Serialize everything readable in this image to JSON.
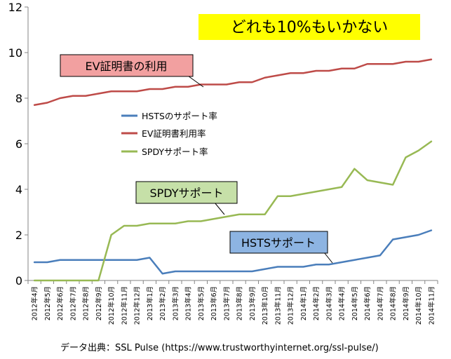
{
  "chart_data": {
    "type": "line",
    "title": "",
    "xlabel": "",
    "ylabel": "",
    "ylim": [
      0,
      12
    ],
    "yticks": [
      0,
      2,
      4,
      6,
      8,
      10,
      12
    ],
    "grid": false,
    "legend_position": "center-left",
    "categories": [
      "2012年4月",
      "2012年5月",
      "2012年6月",
      "2012年7月",
      "2012年8月",
      "2012年9月",
      "2012年10月",
      "2012年11月",
      "2012年12月",
      "2013年1月",
      "2013年2月",
      "2013年3月",
      "2013年4月",
      "2013年5月",
      "2013年6月",
      "2013年7月",
      "2013年8月",
      "2013年9月",
      "2013年10月",
      "2013年11月",
      "2013年12月",
      "2014年1月",
      "2014年2月",
      "2014年3月",
      "2014年4月",
      "2014年5月",
      "2014年6月",
      "2014年7月",
      "2014年8月",
      "2014年9月",
      "2014年10月",
      "2014年11月"
    ],
    "series": [
      {
        "name": "HSTSのサポート率",
        "color": "#4a7ebb",
        "values": [
          0.8,
          0.8,
          0.9,
          0.9,
          0.9,
          0.9,
          0.9,
          0.9,
          0.9,
          1.0,
          0.3,
          0.4,
          0.4,
          0.4,
          0.4,
          0.4,
          0.4,
          0.4,
          0.5,
          0.6,
          0.6,
          0.6,
          0.7,
          0.7,
          0.8,
          0.9,
          1.0,
          1.1,
          1.8,
          1.9,
          2.0,
          2.2
        ]
      },
      {
        "name": "EV証明書利用率",
        "color": "#be4b48",
        "values": [
          7.7,
          7.8,
          8.0,
          8.1,
          8.1,
          8.2,
          8.3,
          8.3,
          8.3,
          8.4,
          8.4,
          8.5,
          8.5,
          8.6,
          8.6,
          8.6,
          8.7,
          8.7,
          8.9,
          9.0,
          9.1,
          9.1,
          9.2,
          9.2,
          9.3,
          9.3,
          9.5,
          9.5,
          9.5,
          9.6,
          9.6,
          9.7
        ]
      },
      {
        "name": "SPDYサポート率",
        "color": "#98b954",
        "values": [
          0.0,
          0.0,
          0.0,
          0.0,
          0.0,
          0.0,
          2.0,
          2.4,
          2.4,
          2.5,
          2.5,
          2.5,
          2.6,
          2.6,
          2.7,
          2.8,
          2.9,
          2.9,
          2.9,
          3.7,
          3.7,
          3.8,
          3.9,
          4.0,
          4.1,
          4.9,
          4.4,
          4.3,
          4.2,
          5.4,
          5.7,
          6.1
        ]
      }
    ],
    "annotations": {
      "headline": "どれも10%もいかない",
      "ev_callout": "EV証明書の利用",
      "spdy_callout": "SPDYサポート",
      "hsts_callout": "HSTSサポート"
    }
  },
  "source_text": "データ出典：SSL Pulse (https://www.trustworthyinternet.org/ssl-pulse/)",
  "colors": {
    "headline_bg": "#ffff00",
    "ev_callout_bg": "#f2a0a0",
    "spdy_callout_bg": "#c6e0a8",
    "hsts_callout_bg": "#8db4e2",
    "axis": "#868686"
  }
}
